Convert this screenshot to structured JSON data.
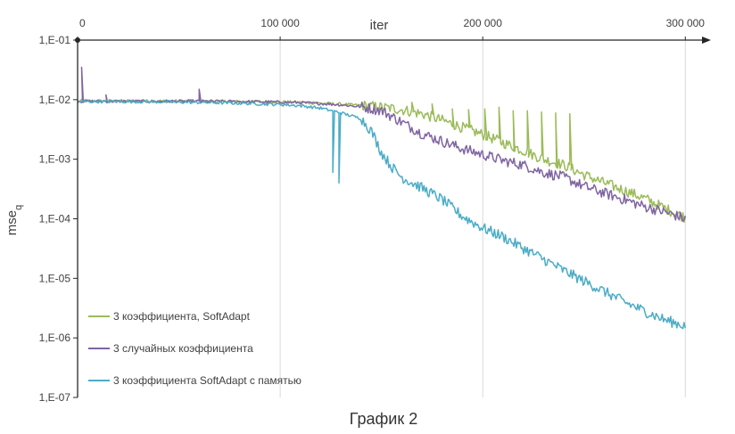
{
  "chart_data": {
    "type": "line",
    "title": "",
    "caption": "График 2",
    "xlabel": "iter",
    "ylabel_base": "mse",
    "ylabel_sub": "q",
    "x_ticks": [
      "0",
      "100 000",
      "200 000",
      "300 000"
    ],
    "x_tick_values": [
      0,
      100000,
      200000,
      300000
    ],
    "xlim": [
      0,
      310000
    ],
    "y_scale": "log",
    "y_ticks": [
      "1,E-01",
      "1,E-02",
      "1,E-03",
      "1,E-04",
      "1,E-05",
      "1,E-06",
      "1,E-07"
    ],
    "y_exponents": [
      -1,
      -2,
      -3,
      -4,
      -5,
      -6,
      -7
    ],
    "ylim": [
      1e-07,
      0.1
    ],
    "grid": "vertical",
    "legend_position": "bottom-left",
    "series": [
      {
        "name": "3 коэффициента, SoftAdapt",
        "color": "#9BBB59",
        "x": [
          0,
          20000,
          40000,
          60000,
          80000,
          100000,
          110000,
          120000,
          130000,
          140000,
          150000,
          160000,
          170000,
          180000,
          190000,
          200000,
          210000,
          220000,
          230000,
          240000,
          250000,
          260000,
          270000,
          280000,
          290000,
          300000
        ],
        "y": [
          0.0095,
          0.0095,
          0.0095,
          0.0094,
          0.0093,
          0.0092,
          0.009,
          0.0087,
          0.0084,
          0.008,
          0.0075,
          0.0068,
          0.0058,
          0.0045,
          0.0034,
          0.0026,
          0.0019,
          0.0014,
          0.001,
          0.0008,
          0.00055,
          0.0004,
          0.0003,
          0.00022,
          0.00015,
          0.000105
        ],
        "spikes_x": [
          165000,
          175000,
          185000,
          193000,
          201000,
          208000,
          215000,
          222000,
          229000,
          236000,
          243000
        ],
        "spikes_y": [
          0.009,
          0.0085,
          0.007,
          0.0068,
          0.007,
          0.0075,
          0.0065,
          0.0065,
          0.0062,
          0.006,
          0.0058
        ]
      },
      {
        "name": "3 случайных коэффициента",
        "color": "#8064A2",
        "x": [
          0,
          20000,
          40000,
          60000,
          80000,
          100000,
          110000,
          120000,
          130000,
          140000,
          150000,
          160000,
          170000,
          180000,
          190000,
          200000,
          210000,
          220000,
          230000,
          240000,
          250000,
          260000,
          270000,
          280000,
          290000,
          300000
        ],
        "y": [
          0.0094,
          0.0094,
          0.0094,
          0.0094,
          0.0093,
          0.0091,
          0.0089,
          0.0086,
          0.0082,
          0.0076,
          0.0066,
          0.0042,
          0.0027,
          0.002,
          0.0015,
          0.0012,
          0.00095,
          0.0008,
          0.0006,
          0.0005,
          0.00035,
          0.00027,
          0.00021,
          0.00016,
          0.00013,
          0.0001
        ],
        "spikes_x": [
          2000,
          14000,
          60000
        ],
        "spikes_y": [
          0.035,
          0.012,
          0.015
        ]
      },
      {
        "name": "3 коэффициента SoftAdapt с памятью",
        "color": "#4BACC6",
        "x": [
          0,
          20000,
          40000,
          60000,
          80000,
          100000,
          110000,
          120000,
          130000,
          140000,
          145000,
          150000,
          155000,
          160000,
          170000,
          180000,
          190000,
          200000,
          210000,
          220000,
          230000,
          240000,
          250000,
          260000,
          270000,
          280000,
          290000,
          300000
        ],
        "y": [
          0.0093,
          0.0093,
          0.0092,
          0.009,
          0.0087,
          0.0083,
          0.0079,
          0.0072,
          0.006,
          0.0048,
          0.003,
          0.0013,
          0.00075,
          0.0005,
          0.00033,
          0.00021,
          0.00011,
          7e-05,
          5e-05,
          3.2e-05,
          2.1e-05,
          1.35e-05,
          9e-06,
          6e-06,
          4e-06,
          2.8e-06,
          2e-06,
          1.6e-06
        ],
        "spikes_x": [
          126000,
          129000
        ],
        "spikes_y": [
          0.0006,
          0.0004
        ]
      }
    ]
  }
}
